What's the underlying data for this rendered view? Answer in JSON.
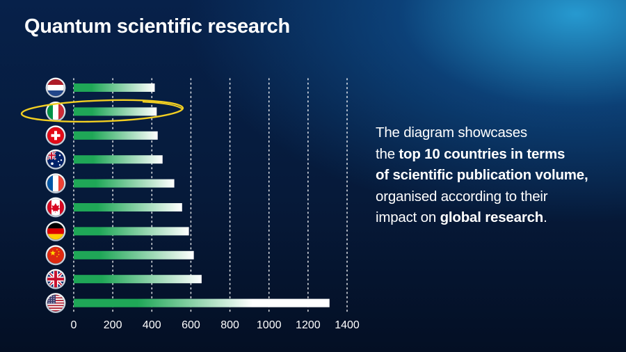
{
  "title": "Quantum scientific research",
  "description": {
    "line1": "The diagram showcases",
    "line2_pre": "the ",
    "line2_bold": "top 10 countries in terms",
    "line3_bold": "of scientific publication volume,",
    "line4": "organised according to their",
    "line5_pre": "impact on ",
    "line5_bold": "global research",
    "line5_post": "."
  },
  "colors": {
    "bar_start": "#1fa757",
    "bar_end": "#ffffff",
    "highlight_ellipse": "#f2cf22",
    "grid_dots": "#ffffff"
  },
  "chart_data": {
    "type": "bar",
    "orientation": "horizontal",
    "categories": [
      "Netherlands",
      "Italy",
      "Switzerland",
      "Australia",
      "France",
      "Canada",
      "Germany",
      "China",
      "United Kingdom",
      "United States"
    ],
    "category_icons": [
      "flag-netherlands-icon",
      "flag-italy-icon",
      "flag-switzerland-icon",
      "flag-australia-icon",
      "flag-france-icon",
      "flag-canada-icon",
      "flag-germany-icon",
      "flag-china-icon",
      "flag-uk-icon",
      "flag-usa-icon"
    ],
    "values": [
      415,
      425,
      430,
      455,
      515,
      555,
      590,
      615,
      655,
      1310
    ],
    "xlim": [
      0,
      1400
    ],
    "xticks": [
      0,
      200,
      400,
      600,
      800,
      1000,
      1200,
      1400
    ],
    "grid": "dotted vertical",
    "highlighted_category": "Italy"
  }
}
